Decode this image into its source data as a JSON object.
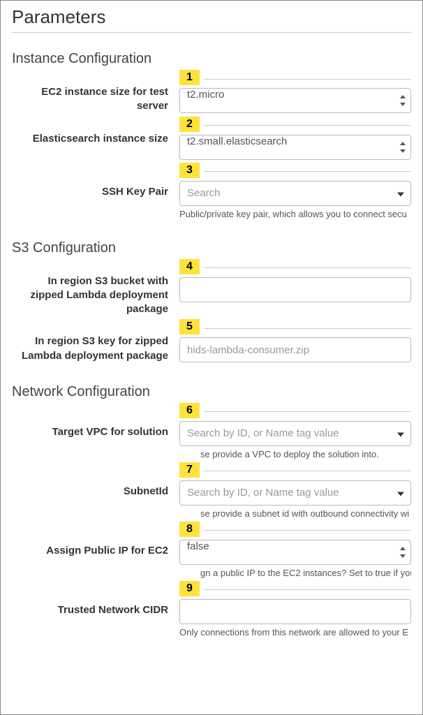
{
  "page": {
    "title": "Parameters"
  },
  "sections": {
    "instance": {
      "title": "Instance Configuration"
    },
    "s3": {
      "title": "S3 Configuration"
    },
    "network": {
      "title": "Network Configuration"
    }
  },
  "fields": {
    "ec2size": {
      "badge": "1",
      "label": "EC2 instance size for test server",
      "value": "t2.micro"
    },
    "essize": {
      "badge": "2",
      "label": "Elasticsearch instance size",
      "value": "t2.small.elasticsearch"
    },
    "sshkey": {
      "badge": "3",
      "label": "SSH Key Pair",
      "placeholder": "Search",
      "help": "Public/private key pair, which allows you to connect secu"
    },
    "s3bucket": {
      "badge": "4",
      "label": "In region S3 bucket with zipped Lambda deployment package",
      "value": ""
    },
    "s3key": {
      "badge": "5",
      "label": "In region S3 key for zipped Lambda deployment package",
      "value": "hids-lambda-consumer.zip"
    },
    "vpc": {
      "badge": "6",
      "label": "Target VPC for solution",
      "placeholder": "Search by ID, or Name tag value",
      "help": "se provide a VPC to deploy the solution into."
    },
    "subnet": {
      "badge": "7",
      "label": "SubnetId",
      "placeholder": "Search by ID, or Name tag value",
      "help": "se provide a subnet id with outbound connectivity wi"
    },
    "publicip": {
      "badge": "8",
      "label": "Assign Public IP for EC2",
      "value": "false",
      "help": "gn a public IP to the EC2 instances? Set to true if you"
    },
    "cidr": {
      "badge": "9",
      "label": "Trusted Network CIDR",
      "value": "",
      "help": "Only connections from this network are allowed to your E"
    }
  }
}
